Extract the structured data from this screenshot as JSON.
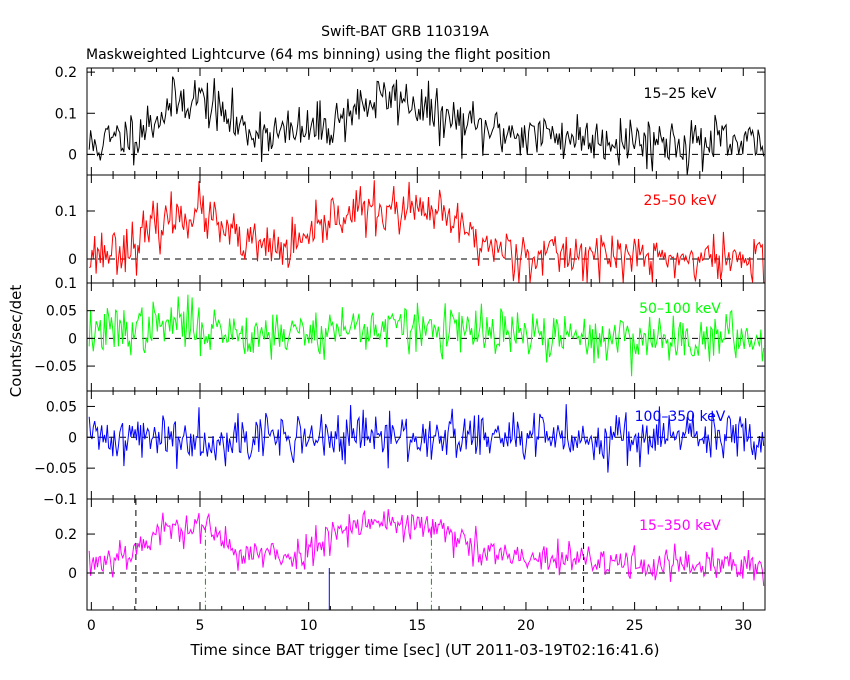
{
  "figure": {
    "title": "Swift-BAT GRB 110319A",
    "subtitle": "Maskweighted Lightcurve (64 ms binning) using the flight position",
    "xlabel": "Time since BAT trigger time [sec] (UT 2011-03-19T02:16:41.6)",
    "ylabel": "Counts/sec/det"
  },
  "chart_data": [
    {
      "type": "line",
      "name": "15-25 keV",
      "label": "15–25 keV",
      "color": "#000000",
      "xlim": [
        -0.2,
        31.0
      ],
      "ylim": [
        -0.05,
        0.21
      ],
      "yticks": [
        0,
        0.1,
        0.2
      ],
      "ytick_labels": [
        "0",
        "0.1",
        "0.2"
      ],
      "xticks": [
        0,
        5,
        10,
        15,
        20,
        25,
        30
      ],
      "x": [
        0,
        2,
        3,
        4,
        5,
        6,
        7,
        9,
        11,
        12,
        13,
        14,
        15,
        16,
        18,
        20,
        23,
        27,
        31
      ],
      "y": [
        0.02,
        0.05,
        0.09,
        0.13,
        0.14,
        0.1,
        0.06,
        0.05,
        0.07,
        0.11,
        0.13,
        0.14,
        0.12,
        0.09,
        0.06,
        0.05,
        0.04,
        0.03,
        0.02
      ],
      "noise": 0.03,
      "seed": 11,
      "zero_line": true
    },
    {
      "type": "line",
      "name": "25-50 keV",
      "label": "25–50 keV",
      "color": "#ff0000",
      "xlim": [
        -0.2,
        31.0
      ],
      "ylim": [
        -0.05,
        0.175
      ],
      "yticks": [
        0,
        0.1
      ],
      "ytick_labels": [
        "0",
        "0.1"
      ],
      "xticks": [
        0,
        5,
        10,
        15,
        20,
        25,
        30
      ],
      "x": [
        0,
        2,
        3,
        4,
        5,
        6,
        7,
        9,
        10.5,
        11,
        12,
        13,
        14,
        15,
        16,
        17,
        18,
        20,
        23,
        27,
        31
      ],
      "y": [
        0.01,
        0.03,
        0.07,
        0.09,
        0.1,
        0.06,
        0.03,
        0.02,
        0.05,
        0.09,
        0.1,
        0.1,
        0.1,
        0.1,
        0.09,
        0.07,
        0.03,
        0.01,
        0.01,
        0.0,
        0.0
      ],
      "noise": 0.025,
      "seed": 23,
      "zero_line": true
    },
    {
      "type": "line",
      "name": "50-100 keV",
      "label": "50–100 keV",
      "color": "#00ff00",
      "xlim": [
        -0.2,
        31.0
      ],
      "ylim": [
        -0.095,
        0.1
      ],
      "yticks": [
        -0.05,
        0,
        0.05,
        0.1
      ],
      "ytick_labels": [
        "−0.05",
        "0",
        "0.05",
        "0.1"
      ],
      "xticks": [
        0,
        5,
        10,
        15,
        20,
        25,
        30
      ],
      "x": [
        0,
        3,
        4,
        5,
        7,
        10,
        12,
        14,
        16,
        18,
        22,
        31
      ],
      "y": [
        0.01,
        0.02,
        0.03,
        0.02,
        0.01,
        0.01,
        0.02,
        0.02,
        0.015,
        0.01,
        0.0,
        0.0
      ],
      "noise": 0.022,
      "seed": 37,
      "zero_line": true
    },
    {
      "type": "line",
      "name": "100-350 keV",
      "label": "100–350 keV",
      "color": "#0000ff",
      "xlim": [
        -0.2,
        31.0
      ],
      "ylim": [
        -0.1,
        0.075
      ],
      "yticks": [
        -0.1,
        -0.05,
        0,
        0.05
      ],
      "ytick_labels": [
        "−0.1",
        "−0.05",
        "0",
        "0.05"
      ],
      "xticks": [
        0,
        5,
        10,
        15,
        20,
        25,
        30
      ],
      "x": [
        0,
        31
      ],
      "y": [
        0.0,
        0.0
      ],
      "noise": 0.02,
      "seed": 41,
      "zero_line": true
    },
    {
      "type": "line",
      "name": "15-350 keV",
      "label": "15–350 keV",
      "color": "#ff00ff",
      "xlim": [
        -0.2,
        31.0
      ],
      "ylim": [
        -0.19,
        0.38
      ],
      "yticks": [
        0,
        0.2
      ],
      "ytick_labels": [
        "0",
        "0.2"
      ],
      "xticks": [
        0,
        5,
        10,
        15,
        20,
        25,
        30
      ],
      "xtick_labels": [
        "0",
        "5",
        "10",
        "15",
        "20",
        "25",
        "30"
      ],
      "x": [
        0,
        2,
        3,
        4,
        5,
        6,
        7,
        9,
        10.5,
        11,
        12,
        13,
        14,
        15,
        16,
        17,
        18,
        20,
        23,
        27,
        31
      ],
      "y": [
        0.05,
        0.12,
        0.2,
        0.24,
        0.25,
        0.16,
        0.1,
        0.08,
        0.14,
        0.22,
        0.25,
        0.26,
        0.26,
        0.25,
        0.22,
        0.16,
        0.1,
        0.07,
        0.06,
        0.04,
        0.03
      ],
      "noise": 0.045,
      "seed": 53,
      "zero_line": true,
      "vlines": [
        {
          "x": 2.05,
          "color": "#000000",
          "style": "dashed",
          "span": "full"
        },
        {
          "x": 22.65,
          "color": "#000000",
          "style": "dashed",
          "span": "full"
        },
        {
          "x": 5.25,
          "color": "#00aa00",
          "style": "dashdot",
          "span": "lower"
        },
        {
          "x": 15.65,
          "color": "#00aa00",
          "style": "dashdot",
          "span": "lower"
        },
        {
          "x": 10.95,
          "color": "#0000ff",
          "style": "solid",
          "span": "bottom"
        }
      ]
    }
  ]
}
